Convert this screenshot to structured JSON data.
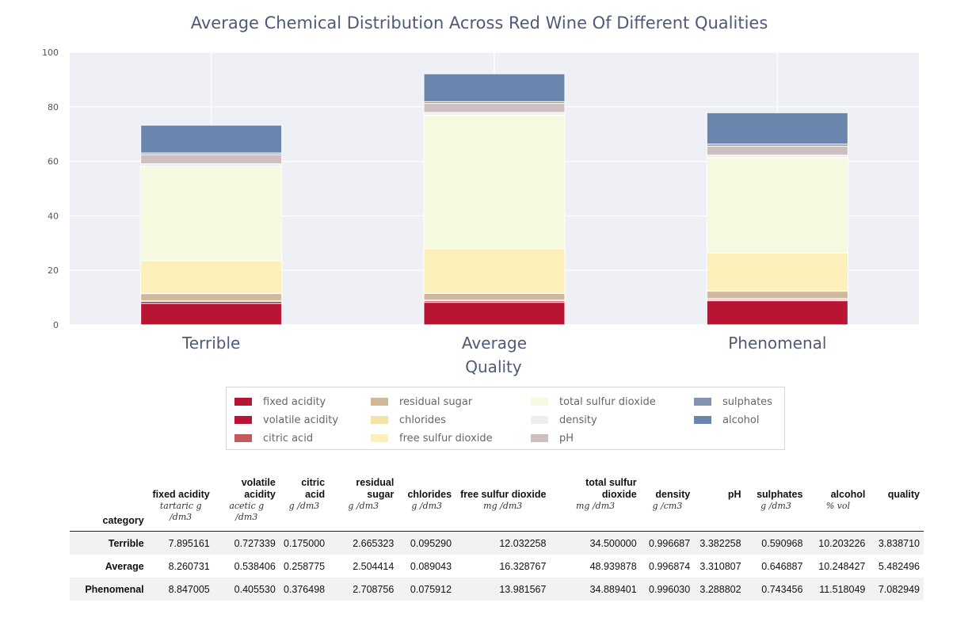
{
  "chart_data": {
    "type": "bar",
    "stacked": true,
    "title": "Average Chemical Distribution Across Red Wine Of Different Qualities",
    "xlabel": "Quality",
    "ylabel": "",
    "ylim": [
      0,
      100
    ],
    "yticks": [
      0,
      20,
      40,
      60,
      80,
      100
    ],
    "grid": true,
    "legend_position": "bottom",
    "categories": [
      "Terrible",
      "Average",
      "Phenomenal"
    ],
    "series": [
      {
        "name": "fixed acidity",
        "color": "#b81434",
        "values": [
          7.895161,
          8.260731,
          8.847005
        ]
      },
      {
        "name": "volatile acidity",
        "color": "#b81434",
        "values": [
          0.727339,
          0.538406,
          0.40553
        ]
      },
      {
        "name": "citric acid",
        "color": "#c45a5a",
        "values": [
          0.175,
          0.258775,
          0.376498
        ]
      },
      {
        "name": "residual sugar",
        "color": "#d2b89a",
        "values": [
          2.665323,
          2.504414,
          2.708756
        ]
      },
      {
        "name": "chlorides",
        "color": "#f5e2a6",
        "values": [
          0.09529,
          0.089043,
          0.075912
        ]
      },
      {
        "name": "free sulfur dioxide",
        "color": "#fcefb9",
        "values": [
          12.032258,
          16.328767,
          13.981567
        ]
      },
      {
        "name": "total sulfur dioxide",
        "color": "#f5f9e0",
        "values": [
          34.5,
          48.939878,
          34.889401
        ]
      },
      {
        "name": "density",
        "color": "#eeeeee",
        "values": [
          0.996687,
          0.996874,
          0.99603
        ]
      },
      {
        "name": "pH",
        "color": "#cdbfbf",
        "values": [
          3.382258,
          3.310807,
          3.288802
        ]
      },
      {
        "name": "sulphates",
        "color": "#8593b2",
        "values": [
          0.590968,
          0.646887,
          0.743456
        ]
      },
      {
        "name": "alcohol",
        "color": "#6b86ae",
        "values": [
          10.203226,
          10.248427,
          11.518049
        ]
      }
    ]
  },
  "table": {
    "index_header": "category",
    "columns": [
      {
        "name": "fixed acidity",
        "unit": "tartaric g /dm3"
      },
      {
        "name": "volatile acidity",
        "unit": "acetic g /dm3"
      },
      {
        "name": "citric acid",
        "unit": "g /dm3"
      },
      {
        "name": "residual sugar",
        "unit": "g /dm3"
      },
      {
        "name": "chlorides",
        "unit": "g /dm3"
      },
      {
        "name": "free sulfur dioxide",
        "unit": "mg /dm3"
      },
      {
        "name": "total sulfur dioxide",
        "unit": "mg /dm3"
      },
      {
        "name": "density",
        "unit": "g /cm3"
      },
      {
        "name": "pH",
        "unit": ""
      },
      {
        "name": "sulphates",
        "unit": "g /dm3"
      },
      {
        "name": "alcohol",
        "unit": "% vol"
      },
      {
        "name": "quality",
        "unit": ""
      }
    ],
    "rows": [
      {
        "category": "Terrible",
        "values": [
          "7.895161",
          "0.727339",
          "0.175000",
          "2.665323",
          "0.095290",
          "12.032258",
          "34.500000",
          "0.996687",
          "3.382258",
          "0.590968",
          "10.203226",
          "3.838710"
        ]
      },
      {
        "category": "Average",
        "values": [
          "8.260731",
          "0.538406",
          "0.258775",
          "2.504414",
          "0.089043",
          "16.328767",
          "48.939878",
          "0.996874",
          "3.310807",
          "0.646887",
          "10.248427",
          "5.482496"
        ]
      },
      {
        "category": "Phenomenal",
        "values": [
          "8.847005",
          "0.405530",
          "0.376498",
          "2.708756",
          "0.075912",
          "13.981567",
          "34.889401",
          "0.996030",
          "3.288802",
          "0.743456",
          "11.518049",
          "7.082949"
        ]
      }
    ]
  }
}
